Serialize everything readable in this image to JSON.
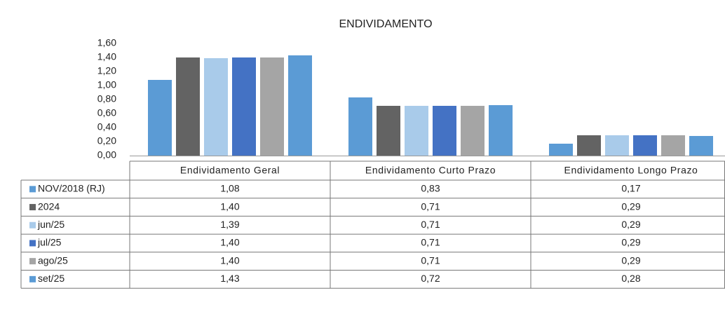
{
  "chart_data": {
    "type": "bar",
    "title": "ENDIVIDAMENTO",
    "categories": [
      "Endividamento Geral",
      "Endividamento Curto Prazo",
      "Endividamento Longo Prazo"
    ],
    "series": [
      {
        "name": "NOV/2018 (RJ)",
        "color": "#5b9bd5",
        "values": [
          1.08,
          0.83,
          0.17
        ],
        "value_labels": [
          "1,08",
          "0,83",
          "0,17"
        ]
      },
      {
        "name": "2024",
        "color": "#636363",
        "values": [
          1.4,
          0.71,
          0.29
        ],
        "value_labels": [
          "1,40",
          "0,71",
          "0,29"
        ]
      },
      {
        "name": "jun/25",
        "color": "#a9cbea",
        "values": [
          1.39,
          0.71,
          0.29
        ],
        "value_labels": [
          "1,39",
          "0,71",
          "0,29"
        ]
      },
      {
        "name": "jul/25",
        "color": "#4472c4",
        "values": [
          1.4,
          0.71,
          0.29
        ],
        "value_labels": [
          "1,40",
          "0,71",
          "0,29"
        ]
      },
      {
        "name": "ago/25",
        "color": "#a5a5a5",
        "values": [
          1.4,
          0.71,
          0.29
        ],
        "value_labels": [
          "1,40",
          "0,71",
          "0,29"
        ]
      },
      {
        "name": "set/25",
        "color": "#5b9bd5",
        "values": [
          1.43,
          0.72,
          0.28
        ],
        "value_labels": [
          "1,43",
          "0,72",
          "0,28"
        ]
      }
    ],
    "ylim": [
      0,
      1.6
    ],
    "yticks": [
      {
        "value": 0,
        "label": "0,00"
      },
      {
        "value": 0.2,
        "label": "0,20"
      },
      {
        "value": 0.4,
        "label": "0,40"
      },
      {
        "value": 0.6,
        "label": "0,60"
      },
      {
        "value": 0.8,
        "label": "0,80"
      },
      {
        "value": 1.0,
        "label": "1,00"
      },
      {
        "value": 1.2,
        "label": "1,20"
      },
      {
        "value": 1.4,
        "label": "1,40"
      },
      {
        "value": 1.6,
        "label": "1,60"
      }
    ],
    "grid": false
  }
}
